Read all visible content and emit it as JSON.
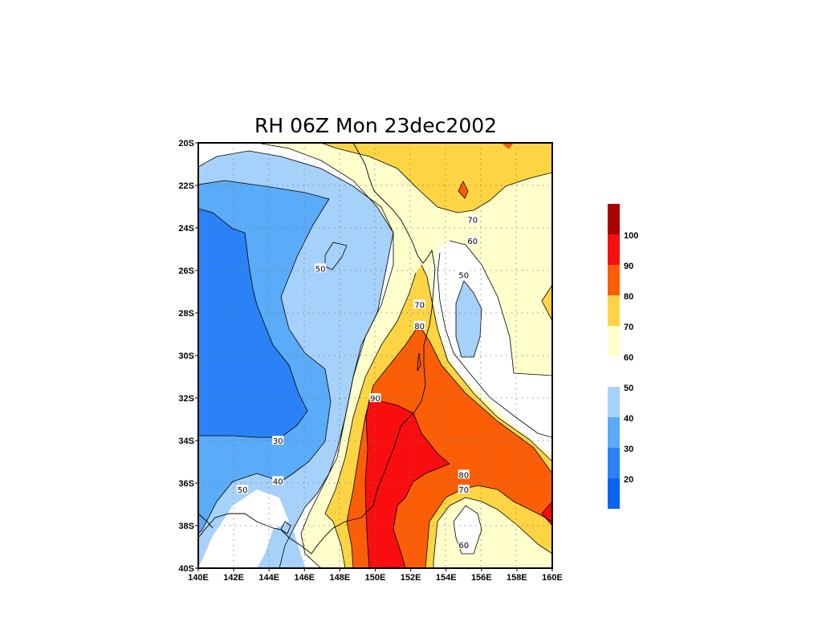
{
  "title": "RH 06Z Mon 23dec2002",
  "x_ticks": [
    "140E",
    "142E",
    "144E",
    "146E",
    "148E",
    "150E",
    "152E",
    "154E",
    "156E",
    "158E",
    "160E"
  ],
  "y_ticks": [
    "20S",
    "22S",
    "24S",
    "26S",
    "28S",
    "30S",
    "32S",
    "34S",
    "36S",
    "38S",
    "40S"
  ],
  "contour_labels": [
    {
      "text": "50",
      "lon": 146.9,
      "lat": -25.9
    },
    {
      "text": "70",
      "lon": 155.5,
      "lat": -23.6
    },
    {
      "text": "60",
      "lon": 155.5,
      "lat": -24.6
    },
    {
      "text": "50",
      "lon": 155.0,
      "lat": -26.2
    },
    {
      "text": "70",
      "lon": 152.5,
      "lat": -27.6
    },
    {
      "text": "80",
      "lon": 152.5,
      "lat": -28.6
    },
    {
      "text": "90",
      "lon": 150.0,
      "lat": -32.0
    },
    {
      "text": "30",
      "lon": 144.5,
      "lat": -34.0
    },
    {
      "text": "40",
      "lon": 144.5,
      "lat": -35.9
    },
    {
      "text": "50",
      "lon": 142.5,
      "lat": -36.3
    },
    {
      "text": "80",
      "lon": 155.0,
      "lat": -35.6
    },
    {
      "text": "70",
      "lon": 155.0,
      "lat": -36.3
    },
    {
      "text": "60",
      "lon": 155.0,
      "lat": -38.9
    }
  ],
  "colorbar": {
    "labels": [
      "100",
      "90",
      "80",
      "70",
      "60",
      "50",
      "40",
      "30",
      "20"
    ],
    "colors": {
      "c10_20": "#0a64f5",
      "c20_30": "#2a82f6",
      "c30_40": "#5aabf8",
      "c40_50": "#a6d1fa",
      "c60_70": "#ffffcc",
      "c70_80": "#fdd444",
      "c80_90": "#fb5e06",
      "c90_100": "#fa0d0f",
      "c100_110": "#a80202"
    }
  }
}
